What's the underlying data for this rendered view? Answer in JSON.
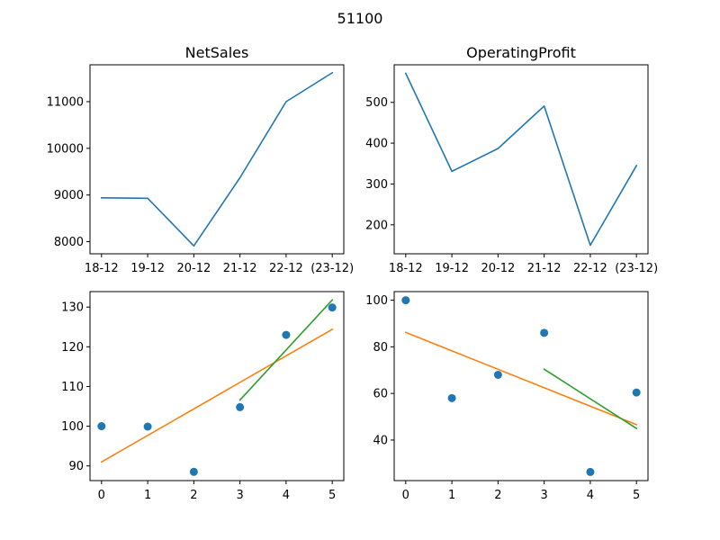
{
  "figure": {
    "suptitle": "51100"
  },
  "colors": {
    "blue": "#1f77b4",
    "orange": "#ff7f0e",
    "green": "#2ca02c"
  },
  "chart_data": [
    {
      "type": "line",
      "title": "NetSales",
      "categories": [
        "18-12",
        "19-12",
        "20-12",
        "21-12",
        "22-12",
        "(23-12)"
      ],
      "series": [
        {
          "values": [
            8940,
            8930,
            7910,
            9370,
            11000,
            11620
          ],
          "color": "#1f77b4"
        }
      ],
      "yticks": [
        8000,
        9000,
        10000,
        11000
      ],
      "ylim": [
        7740,
        11790
      ],
      "grid": false
    },
    {
      "type": "line",
      "title": "OperatingProfit",
      "categories": [
        "18-12",
        "19-12",
        "20-12",
        "21-12",
        "22-12",
        "(23-12)"
      ],
      "series": [
        {
          "values": [
            571,
            331,
            387,
            491,
            150,
            345
          ],
          "color": "#1f77b4"
        }
      ],
      "yticks": [
        200,
        300,
        400,
        500
      ],
      "ylim": [
        129,
        592
      ],
      "grid": false
    },
    {
      "type": "scatter",
      "title": "",
      "x": [
        0,
        1,
        2,
        3,
        4,
        5
      ],
      "points": [
        100,
        99.9,
        88.5,
        104.8,
        123.0,
        129.9
      ],
      "lines": [
        {
          "x": [
            0,
            5
          ],
          "y": [
            91.0,
            124.4
          ],
          "color": "#ff7f0e"
        },
        {
          "x": [
            3,
            5
          ],
          "y": [
            106.6,
            131.8
          ],
          "color": "#2ca02c"
        }
      ],
      "point_color": "#1f77b4",
      "xticks": [
        0,
        1,
        2,
        3,
        4,
        5
      ],
      "yticks": [
        90,
        100,
        110,
        120,
        130
      ],
      "xlim": [
        -0.25,
        5.25
      ],
      "ylim": [
        86.3,
        133.9
      ],
      "grid": false
    },
    {
      "type": "scatter",
      "title": "",
      "x": [
        0,
        1,
        2,
        3,
        4,
        5
      ],
      "points": [
        100,
        58,
        68,
        86,
        26.3,
        60.4
      ],
      "lines": [
        {
          "x": [
            0,
            5
          ],
          "y": [
            86.2,
            46.6
          ],
          "color": "#ff7f0e"
        },
        {
          "x": [
            3,
            5
          ],
          "y": [
            70.4,
            45.0
          ],
          "color": "#2ca02c"
        }
      ],
      "point_color": "#1f77b4",
      "xticks": [
        0,
        1,
        2,
        3,
        4,
        5
      ],
      "yticks": [
        40,
        60,
        80,
        100
      ],
      "xlim": [
        -0.25,
        5.25
      ],
      "ylim": [
        22.6,
        103.7
      ],
      "grid": false
    }
  ]
}
